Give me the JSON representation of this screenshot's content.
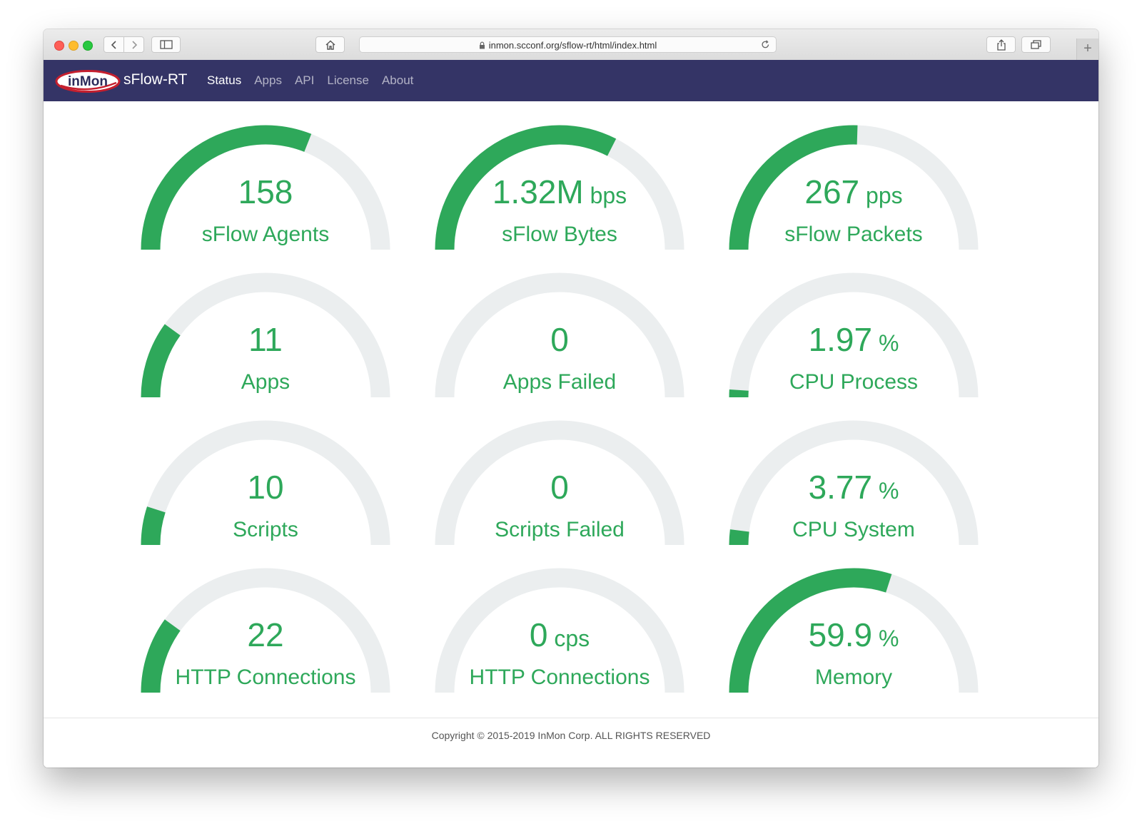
{
  "browser": {
    "url": "inmon.scconf.org/sflow-rt/html/index.html",
    "new_tab": "+"
  },
  "navbar": {
    "logo_text": "inMon",
    "brand": "sFlow-RT",
    "items": [
      {
        "label": "Status",
        "active": true
      },
      {
        "label": "Apps",
        "active": false
      },
      {
        "label": "API",
        "active": false
      },
      {
        "label": "License",
        "active": false
      },
      {
        "label": "About",
        "active": false
      }
    ]
  },
  "colors": {
    "accent": "#2ea85a",
    "track": "#ebeeef",
    "navbar": "#343466"
  },
  "gauges": [
    {
      "value": "158",
      "unit": "",
      "label": "sFlow Agents",
      "fraction": 0.62
    },
    {
      "value": "1.32M",
      "unit": "bps",
      "label": "sFlow Bytes",
      "fraction": 0.65
    },
    {
      "value": "267",
      "unit": "pps",
      "label": "sFlow Packets",
      "fraction": 0.51
    },
    {
      "value": "11",
      "unit": "",
      "label": "Apps",
      "fraction": 0.2
    },
    {
      "value": "0",
      "unit": "",
      "label": "Apps Failed",
      "fraction": 0.0
    },
    {
      "value": "1.97",
      "unit": "%",
      "label": "CPU Process",
      "fraction": 0.02
    },
    {
      "value": "10",
      "unit": "",
      "label": "Scripts",
      "fraction": 0.1
    },
    {
      "value": "0",
      "unit": "",
      "label": "Scripts Failed",
      "fraction": 0.0
    },
    {
      "value": "3.77",
      "unit": "%",
      "label": "CPU System",
      "fraction": 0.04
    },
    {
      "value": "22",
      "unit": "",
      "label": "HTTP Connections",
      "fraction": 0.2
    },
    {
      "value": "0",
      "unit": "cps",
      "label": "HTTP Connections",
      "fraction": 0.0
    },
    {
      "value": "59.9",
      "unit": "%",
      "label": "Memory",
      "fraction": 0.599
    }
  ],
  "footer": {
    "copyright": "Copyright © 2015-2019 InMon Corp. ALL RIGHTS RESERVED"
  }
}
